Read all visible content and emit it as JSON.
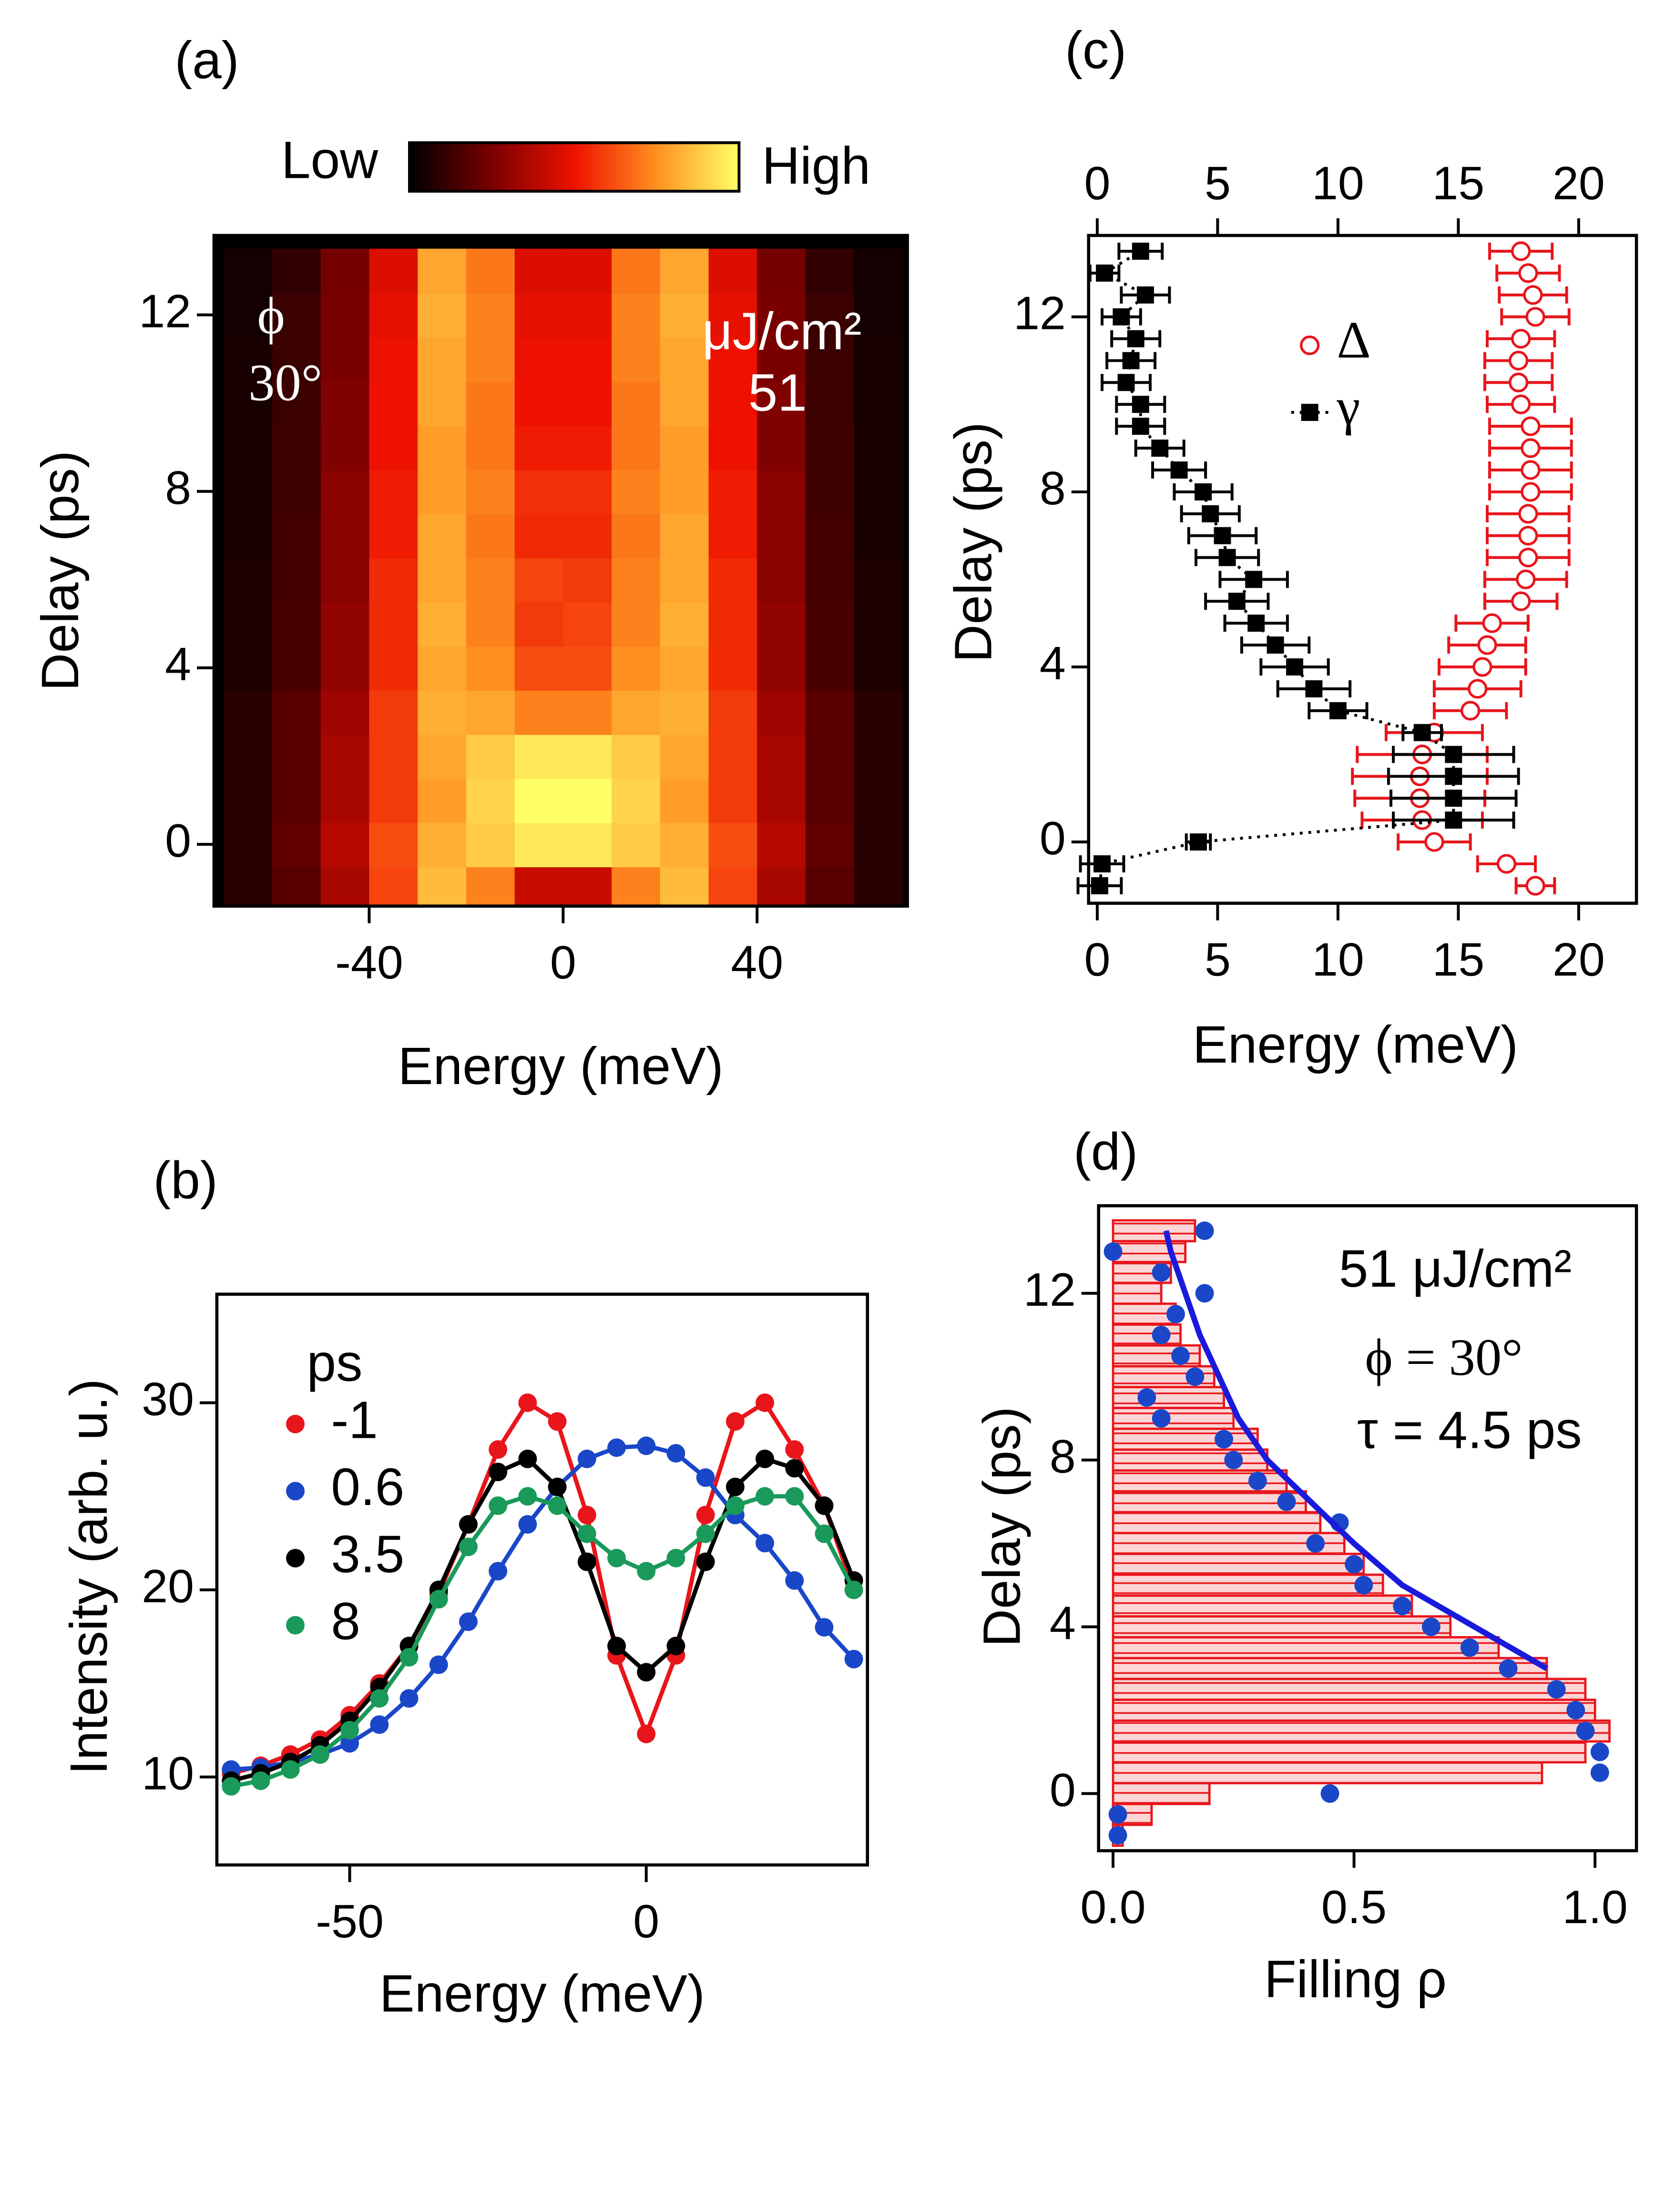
{
  "chart_data": [
    {
      "type": "heatmap",
      "panel": "(a)",
      "xlabel": "Energy (meV)",
      "ylabel": "Delay (ps)",
      "colorbar": {
        "low": "Low",
        "high": "High"
      },
      "colorscale": [
        "#000000",
        "#7a0000",
        "#ee1100",
        "#ff9020",
        "#ffff66"
      ],
      "zlim": [
        0,
        1
      ],
      "annotations": [
        "ϕ",
        "30°",
        "μJ/cm²",
        "51"
      ],
      "x": [
        -65,
        -55,
        -45,
        -35,
        -25,
        -15,
        -5,
        5,
        15,
        25,
        35,
        45,
        55,
        65
      ],
      "y": [
        -1,
        0,
        1,
        2,
        3,
        4,
        5,
        6,
        7,
        8,
        9,
        10,
        11,
        12,
        13
      ],
      "z": [
        [
          0.08,
          0.18,
          0.35,
          0.6,
          0.85,
          0.72,
          0.42,
          0.42,
          0.72,
          0.85,
          0.6,
          0.35,
          0.18,
          0.08
        ],
        [
          0.08,
          0.2,
          0.38,
          0.62,
          0.82,
          0.88,
          0.95,
          0.95,
          0.88,
          0.82,
          0.62,
          0.38,
          0.2,
          0.08
        ],
        [
          0.08,
          0.18,
          0.35,
          0.58,
          0.78,
          0.9,
          1,
          1,
          0.9,
          0.78,
          0.58,
          0.35,
          0.18,
          0.08
        ],
        [
          0.08,
          0.18,
          0.35,
          0.58,
          0.8,
          0.88,
          0.95,
          0.95,
          0.88,
          0.8,
          0.58,
          0.35,
          0.18,
          0.08
        ],
        [
          0.08,
          0.18,
          0.33,
          0.58,
          0.82,
          0.8,
          0.72,
          0.72,
          0.8,
          0.82,
          0.58,
          0.33,
          0.18,
          0.08
        ],
        [
          0.06,
          0.15,
          0.3,
          0.55,
          0.8,
          0.75,
          0.62,
          0.62,
          0.75,
          0.8,
          0.55,
          0.3,
          0.15,
          0.06
        ],
        [
          0.06,
          0.15,
          0.3,
          0.55,
          0.82,
          0.72,
          0.58,
          0.6,
          0.72,
          0.82,
          0.55,
          0.3,
          0.15,
          0.06
        ],
        [
          0.06,
          0.14,
          0.28,
          0.55,
          0.8,
          0.72,
          0.6,
          0.58,
          0.72,
          0.8,
          0.55,
          0.28,
          0.14,
          0.06
        ],
        [
          0.05,
          0.14,
          0.28,
          0.52,
          0.8,
          0.7,
          0.55,
          0.55,
          0.7,
          0.8,
          0.52,
          0.28,
          0.14,
          0.05
        ],
        [
          0.05,
          0.13,
          0.28,
          0.52,
          0.78,
          0.72,
          0.56,
          0.56,
          0.72,
          0.78,
          0.52,
          0.28,
          0.13,
          0.05
        ],
        [
          0.05,
          0.13,
          0.26,
          0.5,
          0.78,
          0.7,
          0.52,
          0.52,
          0.7,
          0.78,
          0.5,
          0.26,
          0.13,
          0.05
        ],
        [
          0.05,
          0.12,
          0.26,
          0.5,
          0.8,
          0.7,
          0.5,
          0.5,
          0.7,
          0.8,
          0.5,
          0.26,
          0.12,
          0.05
        ],
        [
          0.05,
          0.12,
          0.25,
          0.5,
          0.8,
          0.72,
          0.5,
          0.5,
          0.72,
          0.8,
          0.5,
          0.25,
          0.12,
          0.05
        ],
        [
          0.04,
          0.12,
          0.25,
          0.48,
          0.82,
          0.72,
          0.48,
          0.48,
          0.72,
          0.82,
          0.48,
          0.25,
          0.12,
          0.04
        ],
        [
          0.04,
          0.1,
          0.24,
          0.46,
          0.8,
          0.7,
          0.46,
          0.46,
          0.7,
          0.8,
          0.46,
          0.24,
          0.1,
          0.04
        ]
      ],
      "xlim": [
        -72,
        71
      ],
      "ylim": [
        -1.4,
        13.8
      ],
      "xticks": [
        -40,
        0,
        40
      ],
      "yticks": [
        0,
        4,
        8,
        12
      ]
    },
    {
      "type": "scatter",
      "panel": "(b)",
      "xlabel": "Energy (meV)",
      "ylabel": "Intensity (arb. u.)",
      "legend_title": "ps",
      "x": [
        -70,
        -65,
        -60,
        -55,
        -50,
        -45,
        -40,
        -35,
        -30,
        -25,
        -20,
        -15,
        -10,
        -5,
        0,
        5,
        10,
        15,
        20,
        25,
        30,
        35
      ],
      "series": [
        {
          "name": "-1",
          "color": "#e8151b",
          "values": [
            10.2,
            10.6,
            11.2,
            12,
            13.3,
            15,
            17,
            19.8,
            23.5,
            27.5,
            30,
            29,
            24,
            16.5,
            12.3,
            16.5,
            24,
            29,
            30,
            27.5,
            24.5,
            20
          ]
        },
        {
          "name": "0.6",
          "color": "#1a47c8",
          "values": [
            10.4,
            10.5,
            10.8,
            11.2,
            11.8,
            12.8,
            14.2,
            16,
            18.3,
            21,
            23.5,
            25.5,
            27,
            27.6,
            27.7,
            27.3,
            26,
            24,
            22.5,
            20.5,
            18,
            16.3
          ]
        },
        {
          "name": "3.5",
          "color": "#000000",
          "values": [
            9.8,
            10.2,
            10.8,
            11.7,
            13,
            14.8,
            17,
            20,
            23.5,
            26.3,
            27,
            25.5,
            21.5,
            17,
            15.6,
            17,
            21.5,
            25.5,
            27,
            26.5,
            24.5,
            20.5
          ]
        },
        {
          "name": "8",
          "color": "#1a9a5a",
          "values": [
            9.5,
            9.8,
            10.4,
            11.2,
            12.5,
            14.2,
            16.4,
            19.5,
            22.3,
            24.5,
            25,
            24.5,
            23,
            21.7,
            21,
            21.7,
            23,
            24.5,
            25,
            25,
            23,
            20
          ]
        }
      ],
      "xlim": [
        -72.4,
        37.3
      ],
      "ylim": [
        5.3,
        35.8
      ],
      "xticks": [
        -50,
        0
      ],
      "yticks": [
        10,
        20,
        30
      ]
    },
    {
      "type": "errorbar",
      "panel": "(c)",
      "xlabel": "Energy (meV)",
      "ylabel": "Delay (ps)",
      "y": [
        -1,
        -0.5,
        0,
        0.5,
        1,
        1.5,
        2,
        2.5,
        3,
        3.5,
        4,
        4.5,
        5,
        5.5,
        6,
        6.5,
        7,
        7.5,
        8,
        8.5,
        9,
        9.5,
        10,
        10.5,
        11,
        11.5,
        12,
        12.5,
        13,
        13.5
      ],
      "series": [
        {
          "name": "Δ",
          "color": "#e8151b",
          "marker": "circle",
          "x": [
            18.2,
            17,
            14,
            13.5,
            13.4,
            13.4,
            13.5,
            14,
            15.5,
            15.8,
            16,
            16.2,
            16.4,
            17.6,
            17.8,
            17.9,
            17.9,
            17.9,
            18,
            18,
            18,
            18,
            17.6,
            17.5,
            17.5,
            17.6,
            18.2,
            18.1,
            17.9,
            17.6
          ],
          "xerr": [
            0.8,
            1.2,
            1.5,
            2.5,
            2.7,
            2.8,
            2.7,
            2,
            1.5,
            1.8,
            1.8,
            1.6,
            1.5,
            1.5,
            1.7,
            1.7,
            1.7,
            1.7,
            1.7,
            1.7,
            1.7,
            1.7,
            1.4,
            1.4,
            1.4,
            1.4,
            1.4,
            1.4,
            1.3,
            1.3
          ]
        },
        {
          "name": "γ",
          "color": "#000000",
          "marker": "square",
          "x": [
            0.1,
            0.2,
            4.2,
            14.8,
            14.8,
            14.8,
            14.8,
            13.5,
            10,
            9,
            8.2,
            7.4,
            6.6,
            5.8,
            6.5,
            5.4,
            5.2,
            4.7,
            4.4,
            3.4,
            2.6,
            1.8,
            1.8,
            1.2,
            1.4,
            1.6,
            1,
            2,
            0.3,
            1.8
          ],
          "xerr": [
            0.9,
            0.9,
            0.5,
            2.5,
            2.6,
            2.7,
            2.5,
            0.8,
            1.2,
            1.5,
            1.4,
            1.4,
            1.3,
            1.3,
            1.4,
            1.3,
            1.4,
            1.2,
            1.2,
            1.1,
            1,
            1,
            1,
            1,
            1,
            1,
            0.8,
            1,
            0.6,
            0.9
          ]
        }
      ],
      "xlim": [
        -0.36,
        22.4
      ],
      "ylim": [
        -1.4,
        13.86
      ],
      "xticks": [
        0,
        5,
        10,
        15,
        20
      ],
      "yticks": [
        0,
        4,
        8,
        12
      ]
    },
    {
      "type": "histogram",
      "panel": "(d)",
      "xlabel": "Filling ρ",
      "ylabel": "Delay (ps)",
      "annotations": [
        "51 μJ/cm²",
        "ϕ = 30°",
        "τ = 4.5 ps"
      ],
      "color": "#e8151b",
      "fill": "#fcd6d6",
      "bins": [
        -1.25,
        -0.75,
        -0.25,
        0.25,
        0.75,
        1.25,
        1.75,
        2.25,
        2.75,
        3.25,
        3.75,
        4.25,
        4.75,
        5.25,
        5.75,
        6.25,
        6.75,
        7.25,
        7.75,
        8.25,
        8.75,
        9.25,
        9.75,
        10.25,
        10.75,
        11.25,
        11.75,
        12.25,
        12.75,
        13.25,
        13.75
      ],
      "values": [
        0.02,
        0.08,
        0.2,
        0.89,
        0.98,
        1.03,
        1,
        0.98,
        0.9,
        0.8,
        0.7,
        0.62,
        0.56,
        0.52,
        0.48,
        0.43,
        0.4,
        0.36,
        0.32,
        0.3,
        0.25,
        0.23,
        0.21,
        0.18,
        0.14,
        0.13,
        0.1,
        0.12,
        0.15,
        0.17
      ],
      "points": {
        "color": "#1a47c8",
        "y": [
          -1,
          -0.5,
          0,
          0.5,
          1,
          1.5,
          2,
          2.5,
          3,
          3.5,
          4,
          4.5,
          5,
          5.5,
          6,
          6.5,
          7,
          7.5,
          8,
          8.5,
          9,
          9.5,
          10,
          10.5,
          11,
          11.5,
          12,
          12.5,
          13,
          13.5
        ],
        "x": [
          0.01,
          0.01,
          0.45,
          1.01,
          1.01,
          0.98,
          0.96,
          0.92,
          0.82,
          0.74,
          0.66,
          0.6,
          0.52,
          0.5,
          0.42,
          0.47,
          0.36,
          0.3,
          0.25,
          0.23,
          0.1,
          0.07,
          0.17,
          0.14,
          0.1,
          0.13,
          0.19,
          0.1,
          0,
          0.19
        ]
      },
      "fit": {
        "color": "#1a1adc",
        "y": [
          3,
          4,
          5,
          6,
          7,
          8,
          9,
          10,
          11,
          12,
          13,
          13.5
        ],
        "x": [
          0.9,
          0.75,
          0.6,
          0.5,
          0.41,
          0.32,
          0.26,
          0.22,
          0.18,
          0.15,
          0.12,
          0.11
        ]
      },
      "xlim": [
        -0.03,
        1.086
      ],
      "ylim": [
        -1.37,
        14.1
      ],
      "xticks": [
        {
          "value": 0,
          "label": "0.0"
        },
        0.5,
        {
          "value": 1,
          "label": "1.0"
        }
      ],
      "yticks": [
        0,
        4,
        8,
        12
      ]
    }
  ]
}
